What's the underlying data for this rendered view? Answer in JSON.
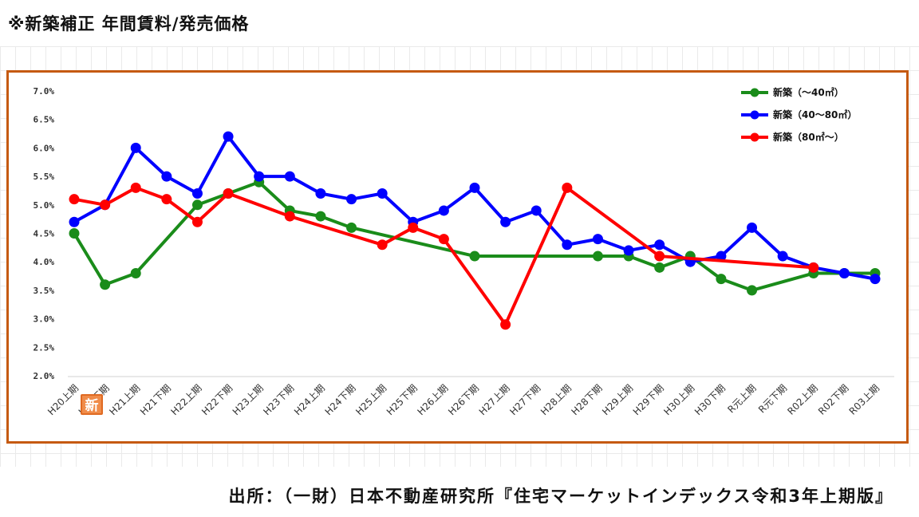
{
  "heading": "※新築補正 年間賃料/発売価格",
  "source": "出所：（一財）日本不動産研究所『住宅マーケットインデックス令和3年上期版』",
  "stamp_text": "新",
  "colors": {
    "frame": "#c55a11",
    "green": "#1a8c1a",
    "blue": "#0000ff",
    "red": "#ff0000"
  },
  "chart_data": {
    "type": "line",
    "categories": [
      "H20上期",
      "H20下期",
      "H21上期",
      "H21下期",
      "H22上期",
      "H22下期",
      "H23上期",
      "H23下期",
      "H24上期",
      "H24下期",
      "H25上期",
      "H25下期",
      "H26上期",
      "H26下期",
      "H27上期",
      "H27下期",
      "H28上期",
      "H28下期",
      "H29上期",
      "H29下期",
      "H30上期",
      "H30下期",
      "R元上期",
      "R元下期",
      "R02上期",
      "R02下期",
      "R03上期"
    ],
    "ylim": [
      2.0,
      7.0
    ],
    "yticks": [
      "2.0%",
      "2.5%",
      "3.0%",
      "3.5%",
      "4.0%",
      "4.5%",
      "5.0%",
      "5.5%",
      "6.0%",
      "6.5%",
      "7.0%"
    ],
    "legend_position": "top-right",
    "series": [
      {
        "name": "新築（～40㎡）",
        "color": "#1a8c1a",
        "values": [
          4.5,
          3.6,
          3.8,
          null,
          5.0,
          5.2,
          5.4,
          4.9,
          4.8,
          4.6,
          null,
          null,
          null,
          4.1,
          null,
          null,
          null,
          4.1,
          4.1,
          3.9,
          4.1,
          3.7,
          3.5,
          null,
          3.8,
          3.8,
          3.8
        ]
      },
      {
        "name": "新築（40～80㎡）",
        "color": "#0000ff",
        "values": [
          4.7,
          5.0,
          6.0,
          5.5,
          5.2,
          6.2,
          5.5,
          5.5,
          5.2,
          5.1,
          5.2,
          4.7,
          4.9,
          5.3,
          4.7,
          4.9,
          4.3,
          4.4,
          4.2,
          4.3,
          4.0,
          4.1,
          4.6,
          4.1,
          3.9,
          3.8,
          3.7
        ]
      },
      {
        "name": "新築（80㎡～）",
        "color": "#ff0000",
        "values": [
          5.1,
          5.0,
          5.3,
          5.1,
          4.7,
          5.2,
          null,
          4.8,
          null,
          null,
          4.3,
          4.6,
          4.4,
          null,
          2.9,
          null,
          5.3,
          null,
          null,
          4.1,
          null,
          null,
          null,
          null,
          3.9,
          null,
          null
        ]
      }
    ]
  }
}
